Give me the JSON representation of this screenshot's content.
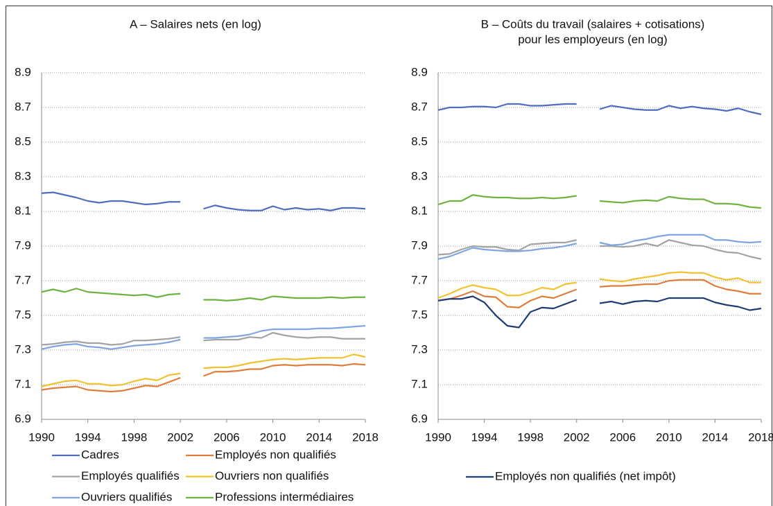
{
  "chart_data": [
    {
      "type": "line",
      "title": "A – Salaires nets (en log)",
      "x": [
        1990,
        1991,
        1992,
        1993,
        1994,
        1995,
        1996,
        1997,
        1998,
        1999,
        2000,
        2001,
        2002,
        2003,
        2004,
        2005,
        2006,
        2007,
        2008,
        2009,
        2010,
        2011,
        2012,
        2013,
        2014,
        2015,
        2016,
        2017,
        2018
      ],
      "xlim": [
        1990,
        2018
      ],
      "xticks": [
        1990,
        1994,
        1998,
        2002,
        2006,
        2010,
        2014,
        2018
      ],
      "ylim": [
        6.9,
        8.9
      ],
      "yticks": [
        6.9,
        7.1,
        7.3,
        7.5,
        7.7,
        7.9,
        8.1,
        8.3,
        8.5,
        8.7,
        8.9
      ],
      "grid": true,
      "legend": "bottom",
      "series": [
        {
          "name": "Cadres",
          "color": "#4f6dc0",
          "values": [
            8.205,
            8.21,
            8.195,
            8.18,
            8.16,
            8.15,
            8.16,
            8.16,
            8.15,
            8.14,
            8.145,
            8.155,
            8.155,
            null,
            8.115,
            8.135,
            8.12,
            8.11,
            8.105,
            8.105,
            8.13,
            8.11,
            8.12,
            8.11,
            8.115,
            8.105,
            8.12,
            8.12,
            8.115
          ]
        },
        {
          "name": "Employés non qualifiés",
          "color": "#df7d3c",
          "values": [
            7.07,
            7.08,
            7.085,
            7.09,
            7.07,
            7.065,
            7.06,
            7.065,
            7.08,
            7.095,
            7.09,
            7.115,
            7.14,
            null,
            7.15,
            7.175,
            7.175,
            7.18,
            7.19,
            7.19,
            7.21,
            7.215,
            7.21,
            7.215,
            7.215,
            7.215,
            7.21,
            7.22,
            7.215
          ]
        },
        {
          "name": "Employés qualifiés",
          "color": "#a3a3a3",
          "values": [
            7.33,
            7.335,
            7.345,
            7.35,
            7.34,
            7.34,
            7.33,
            7.335,
            7.355,
            7.355,
            7.36,
            7.365,
            7.375,
            null,
            7.355,
            7.36,
            7.36,
            7.36,
            7.375,
            7.37,
            7.4,
            7.385,
            7.375,
            7.37,
            7.375,
            7.375,
            7.365,
            7.365,
            7.365
          ]
        },
        {
          "name": "Ouvriers non qualifiés",
          "color": "#f1c22f",
          "values": [
            7.09,
            7.105,
            7.12,
            7.125,
            7.105,
            7.105,
            7.095,
            7.1,
            7.12,
            7.135,
            7.125,
            7.155,
            7.165,
            null,
            7.195,
            7.2,
            7.2,
            7.21,
            7.225,
            7.235,
            7.245,
            7.25,
            7.245,
            7.25,
            7.255,
            7.255,
            7.255,
            7.275,
            7.26
          ]
        },
        {
          "name": "Ouvriers qualifiés",
          "color": "#7ea6df",
          "values": [
            7.305,
            7.32,
            7.33,
            7.335,
            7.32,
            7.315,
            7.305,
            7.315,
            7.325,
            7.33,
            7.335,
            7.345,
            7.36,
            null,
            7.37,
            7.37,
            7.375,
            7.38,
            7.39,
            7.41,
            7.42,
            7.42,
            7.42,
            7.42,
            7.425,
            7.425,
            7.43,
            7.435,
            7.44
          ]
        },
        {
          "name": "Professions intermédiaires",
          "color": "#6db340",
          "values": [
            7.635,
            7.65,
            7.635,
            7.655,
            7.635,
            7.63,
            7.625,
            7.62,
            7.615,
            7.62,
            7.605,
            7.62,
            7.625,
            null,
            7.59,
            7.59,
            7.585,
            7.59,
            7.6,
            7.59,
            7.61,
            7.605,
            7.6,
            7.6,
            7.6,
            7.605,
            7.6,
            7.605,
            7.605
          ]
        }
      ]
    },
    {
      "type": "line",
      "title": [
        "B – Coûts du travail (salaires + cotisations)",
        "pour les employeurs (en log)"
      ],
      "x": [
        1990,
        1991,
        1992,
        1993,
        1994,
        1995,
        1996,
        1997,
        1998,
        1999,
        2000,
        2001,
        2002,
        2003,
        2004,
        2005,
        2006,
        2007,
        2008,
        2009,
        2010,
        2011,
        2012,
        2013,
        2014,
        2015,
        2016,
        2017,
        2018
      ],
      "xlim": [
        1990,
        2018
      ],
      "xticks": [
        1990,
        1994,
        1998,
        2002,
        2006,
        2010,
        2014,
        2018
      ],
      "ylim": [
        6.9,
        8.9
      ],
      "yticks": [
        6.9,
        7.1,
        7.3,
        7.5,
        7.7,
        7.9,
        8.1,
        8.3,
        8.5,
        8.7,
        8.9
      ],
      "grid": true,
      "legend": "bottom",
      "series": [
        {
          "name": "Cadres",
          "color": "#4f6dc0",
          "values": [
            8.685,
            8.7,
            8.7,
            8.705,
            8.705,
            8.7,
            8.72,
            8.72,
            8.71,
            8.71,
            8.715,
            8.72,
            8.72,
            null,
            8.69,
            8.71,
            8.7,
            8.69,
            8.685,
            8.685,
            8.71,
            8.695,
            8.705,
            8.695,
            8.69,
            8.68,
            8.695,
            8.675,
            8.66
          ]
        },
        {
          "name": "Employés non qualifiés",
          "color": "#df7d3c",
          "values": [
            7.585,
            7.595,
            7.615,
            7.64,
            7.61,
            7.605,
            7.55,
            7.545,
            7.585,
            7.61,
            7.6,
            7.625,
            7.65,
            null,
            7.665,
            7.67,
            7.67,
            7.675,
            7.68,
            7.68,
            7.7,
            7.705,
            7.705,
            7.705,
            7.67,
            7.65,
            7.64,
            7.625,
            7.625
          ]
        },
        {
          "name": "Employés qualifiés",
          "color": "#a3a3a3",
          "values": [
            7.85,
            7.855,
            7.88,
            7.9,
            7.895,
            7.895,
            7.88,
            7.875,
            7.91,
            7.915,
            7.92,
            7.92,
            7.935,
            null,
            7.9,
            7.9,
            7.895,
            7.9,
            7.915,
            7.9,
            7.935,
            7.92,
            7.905,
            7.9,
            7.88,
            7.865,
            7.86,
            7.84,
            7.825
          ]
        },
        {
          "name": "Ouvriers non qualifiés",
          "color": "#f1c22f",
          "values": [
            7.6,
            7.625,
            7.655,
            7.675,
            7.66,
            7.65,
            7.615,
            7.615,
            7.635,
            7.66,
            7.65,
            7.68,
            7.69,
            null,
            7.71,
            7.7,
            7.695,
            7.71,
            7.72,
            7.73,
            7.745,
            7.75,
            7.745,
            7.745,
            7.72,
            7.705,
            7.715,
            7.69,
            7.69
          ]
        },
        {
          "name": "Ouvriers qualifiés",
          "color": "#7ea6df",
          "values": [
            7.825,
            7.84,
            7.865,
            7.89,
            7.88,
            7.875,
            7.87,
            7.87,
            7.875,
            7.885,
            7.89,
            7.9,
            7.915,
            null,
            7.92,
            7.905,
            7.91,
            7.93,
            7.94,
            7.955,
            7.965,
            7.965,
            7.965,
            7.965,
            7.935,
            7.935,
            7.925,
            7.92,
            7.925
          ]
        },
        {
          "name": "Professions intermédiaires",
          "color": "#6db340",
          "values": [
            8.14,
            8.16,
            8.16,
            8.195,
            8.185,
            8.18,
            8.18,
            8.175,
            8.175,
            8.18,
            8.175,
            8.18,
            8.19,
            null,
            8.16,
            8.155,
            8.15,
            8.16,
            8.165,
            8.16,
            8.185,
            8.175,
            8.17,
            8.17,
            8.145,
            8.145,
            8.14,
            8.125,
            8.12
          ]
        },
        {
          "name": "Employés non qualifiés (net impôt)",
          "color": "#1f3c72",
          "values": [
            7.585,
            7.595,
            7.595,
            7.61,
            7.575,
            7.5,
            7.44,
            7.43,
            7.52,
            7.545,
            7.54,
            7.565,
            7.59,
            null,
            7.57,
            7.58,
            7.565,
            7.58,
            7.585,
            7.58,
            7.6,
            7.6,
            7.6,
            7.6,
            7.575,
            7.56,
            7.55,
            7.53,
            7.54
          ]
        }
      ]
    }
  ]
}
